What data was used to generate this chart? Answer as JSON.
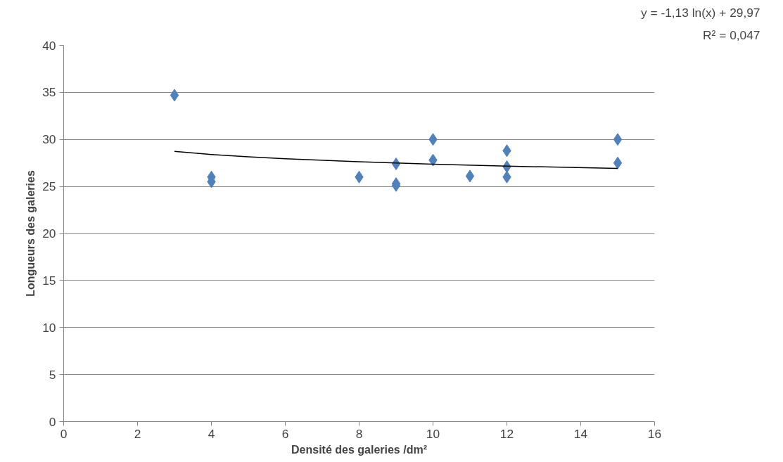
{
  "chart_data": {
    "type": "scatter",
    "xlabel": "Densité des galeries /dm²",
    "ylabel": "Longueurs des galeries",
    "xlim": [
      0,
      16
    ],
    "xticks": [
      0,
      2,
      4,
      6,
      8,
      10,
      12,
      14,
      16
    ],
    "ylim": [
      0,
      40
    ],
    "yticks": [
      0,
      5,
      10,
      15,
      20,
      25,
      30,
      35,
      40
    ],
    "grid": "y",
    "annotations": [
      "y = -1,13 ln(x) + 29,97",
      "R² = 0,047"
    ],
    "series": [
      {
        "marker": "diamond",
        "color": "#4f81bd",
        "x": [
          3,
          4,
          4,
          8,
          9,
          9,
          9,
          10,
          10,
          11,
          12,
          12,
          12,
          15,
          15
        ],
        "values": [
          34.7,
          26.0,
          25.5,
          26.0,
          27.4,
          25.3,
          25.1,
          30.0,
          27.8,
          26.1,
          28.8,
          27.1,
          26.0,
          30.0,
          27.5
        ]
      },
      {
        "type": "line",
        "color": "#000000",
        "line_style": "solid",
        "x": [
          3,
          4,
          5,
          6,
          8,
          10,
          12,
          15
        ],
        "values": [
          28.73,
          28.4,
          28.15,
          27.95,
          27.62,
          27.37,
          27.16,
          26.91
        ]
      }
    ]
  }
}
